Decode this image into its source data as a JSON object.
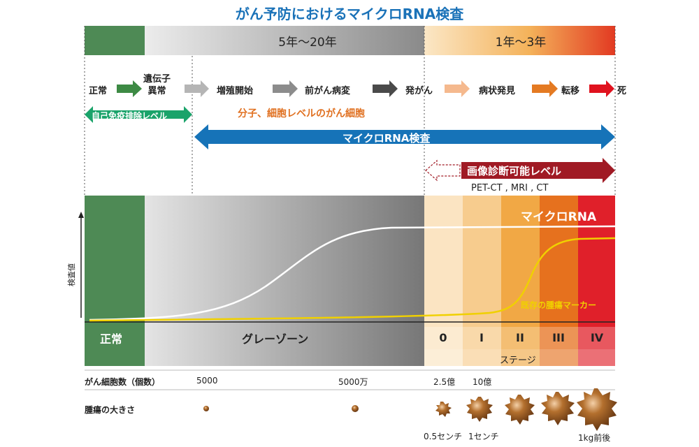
{
  "title": "がん予防におけるマイクロRNA検査",
  "timeline": {
    "band_gray_label": "5年〜20年",
    "band_orange_label": "1年〜3年",
    "steps": [
      "正常",
      "遺伝子\n異常",
      "増殖開始",
      "前がん病変",
      "発がん",
      "病状発見",
      "転移",
      "死"
    ]
  },
  "arrows": {
    "immune": "自己免疫排除レベル",
    "cell_level": "分子、細胞レベルのがん細胞",
    "mirna_test": "マイクロRNA検査",
    "imaging": "画像診断可能レベル",
    "imaging_methods": "PET-CT , MRI , CT"
  },
  "chart": {
    "y_axis_label": "検査値",
    "curve_mirna_label": "マイクロRNA",
    "curve_marker_label": "既存の腫瘍マーカー",
    "zone_normal": "正常",
    "zone_gray": "グレーゾーン",
    "stages": [
      "0",
      "I",
      "II",
      "III",
      "IV"
    ],
    "stage_caption": "ステージ"
  },
  "cell_count": {
    "label": "がん細胞数（個数）",
    "values": [
      "5000",
      "5000万",
      "2.5億",
      "10億"
    ]
  },
  "tumor_size": {
    "label": "腫瘍の大きさ",
    "captions": [
      "0.5センチ",
      "1センチ",
      "1kg前後"
    ]
  },
  "colors": {
    "title_blue": "#1a72b8",
    "normal_green": "#4e8a55",
    "immune_green": "#1aa36a",
    "mirna_blue": "#1673b8",
    "imaging_red": "#a01a24",
    "cell_text_orange": "#e07020",
    "marker_yellow": "#f0d000"
  }
}
